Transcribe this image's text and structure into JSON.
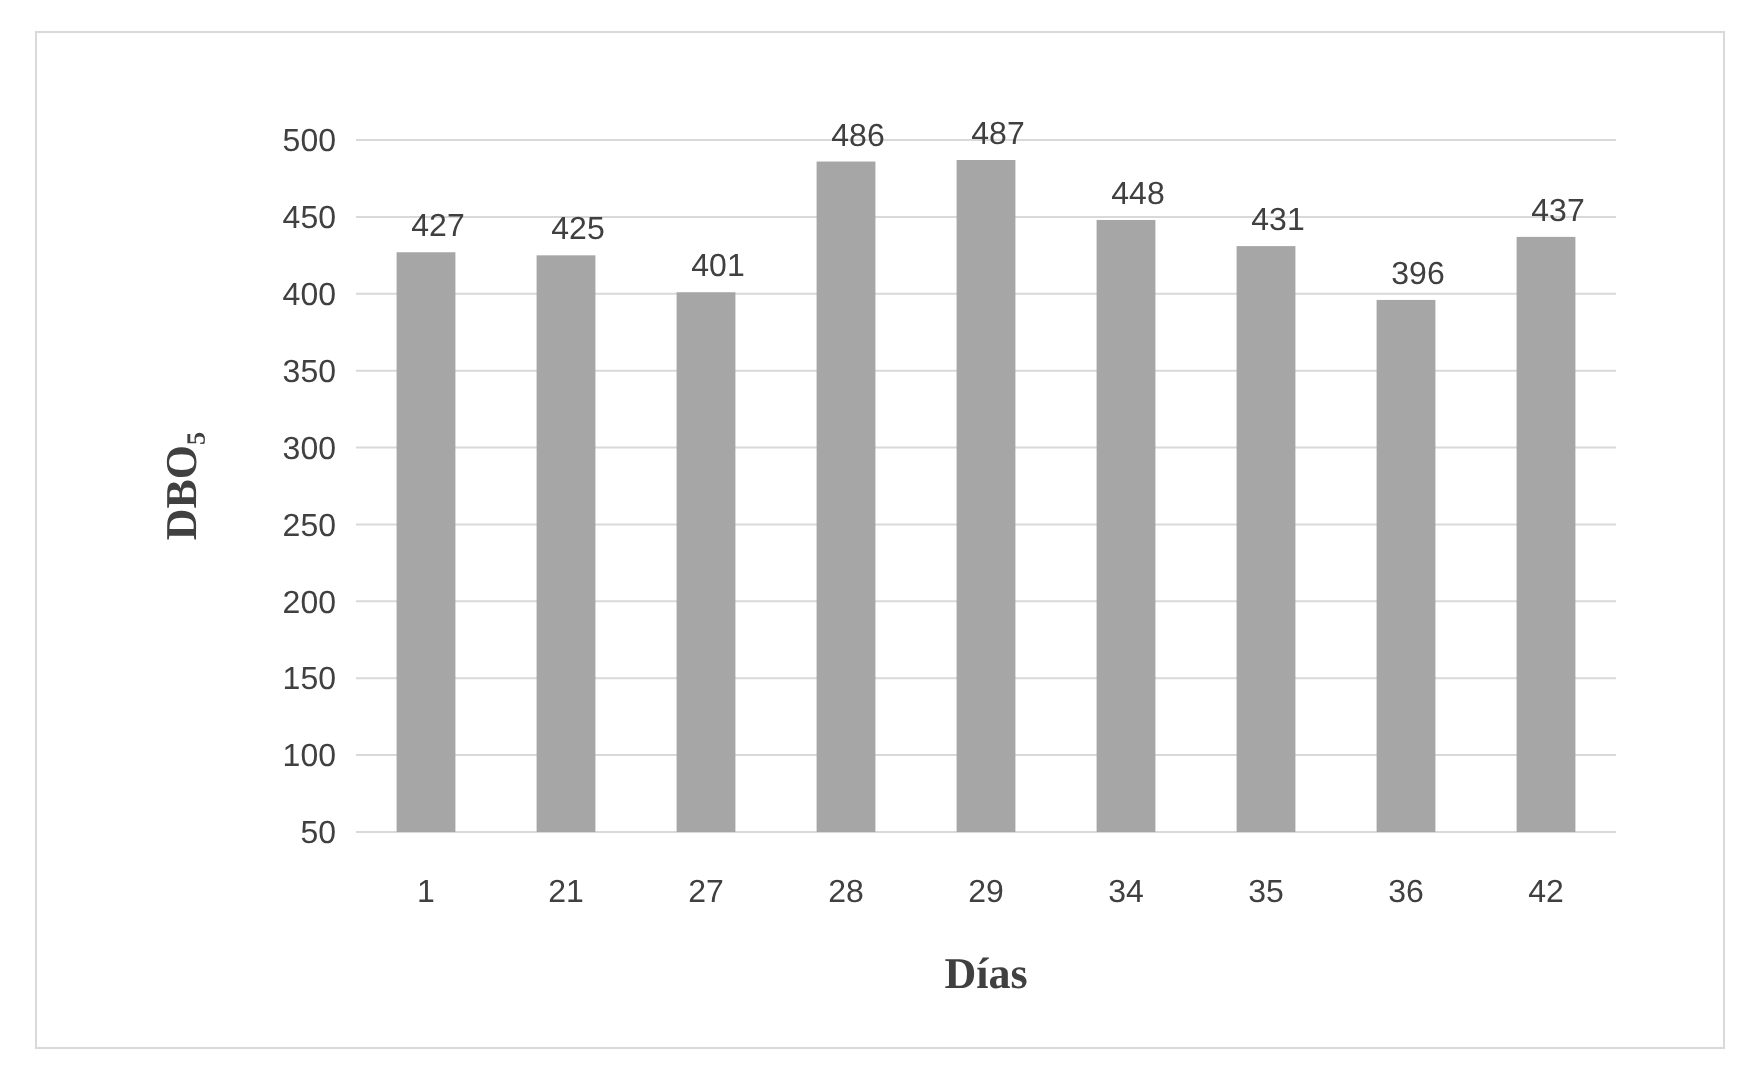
{
  "chart_data": {
    "type": "bar",
    "xlabel": "Días",
    "ylabel": "DBO₅",
    "categories": [
      "1",
      "21",
      "27",
      "28",
      "29",
      "34",
      "35",
      "36",
      "42"
    ],
    "values": [
      427,
      425,
      401,
      486,
      487,
      448,
      431,
      396,
      437
    ],
    "color": "#a6a6a6",
    "ylim": [
      50,
      500
    ],
    "yticks": [
      50,
      100,
      150,
      200,
      250,
      300,
      350,
      400,
      450,
      500
    ],
    "grid": "y",
    "data_labels": true
  }
}
